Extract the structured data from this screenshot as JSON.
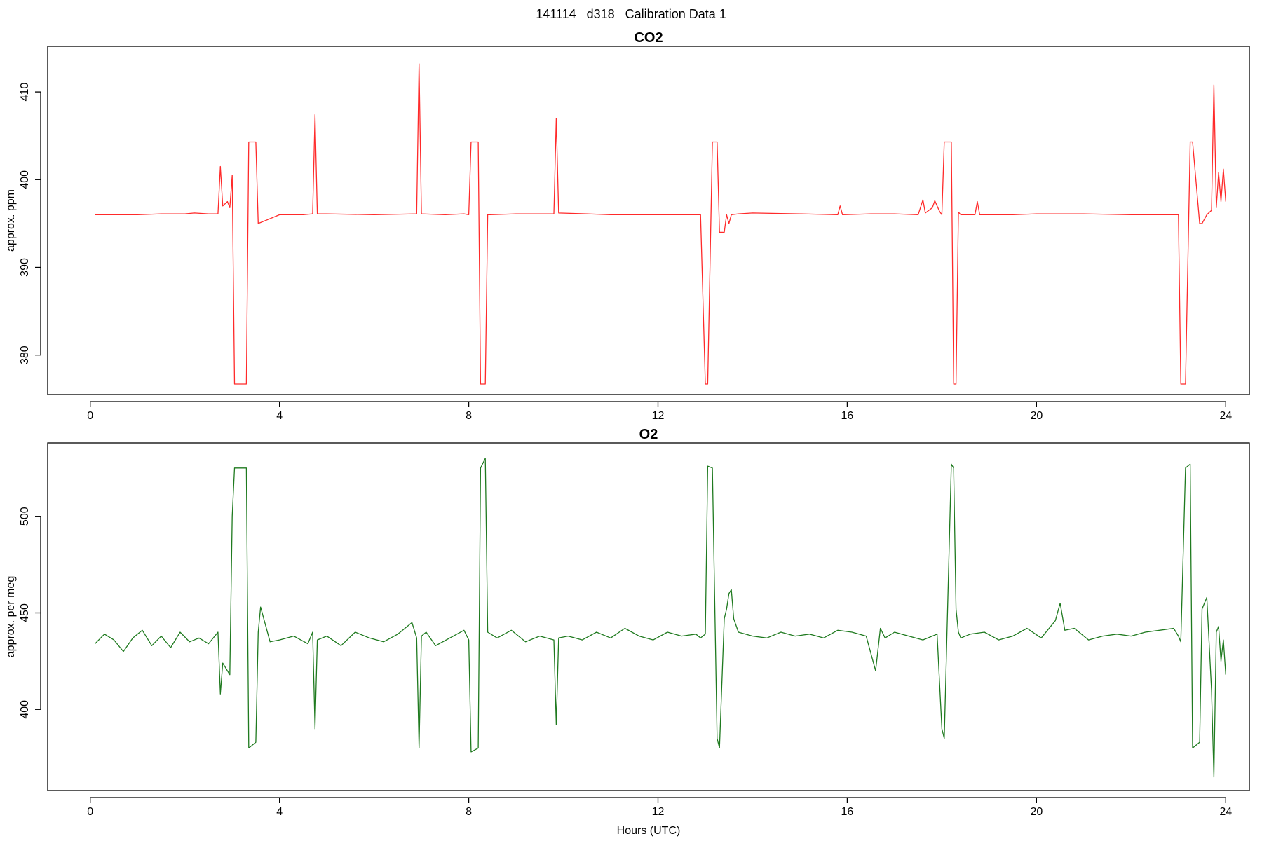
{
  "title": "141114   d318   Calibration Data 1",
  "chart_data": [
    {
      "type": "line",
      "title": "CO2",
      "xlabel": "",
      "ylabel": "approx. ppm",
      "xlim": [
        -0.9,
        24.5
      ],
      "ylim": [
        375.5,
        415.2
      ],
      "xticks": [
        0,
        4,
        8,
        12,
        16,
        20,
        24
      ],
      "yticks": [
        380,
        390,
        400,
        410
      ],
      "color": "#ff2a2a",
      "x": [
        0.1,
        0.5,
        1.0,
        1.5,
        2.0,
        2.2,
        2.5,
        2.7,
        2.75,
        2.8,
        2.9,
        2.95,
        3.0,
        3.05,
        3.3,
        3.35,
        3.5,
        3.55,
        4.0,
        4.5,
        4.7,
        4.75,
        4.8,
        5.0,
        6.0,
        6.9,
        6.95,
        7.0,
        7.5,
        7.9,
        8.0,
        8.05,
        8.2,
        8.25,
        8.35,
        8.4,
        8.45,
        9.0,
        9.8,
        9.85,
        9.9,
        10.5,
        11.0,
        12.0,
        12.9,
        13.0,
        13.05,
        13.15,
        13.25,
        13.3,
        13.4,
        13.45,
        13.5,
        13.55,
        13.7,
        14.0,
        15.0,
        15.8,
        15.85,
        15.9,
        16.5,
        17.0,
        17.5,
        17.6,
        17.65,
        17.8,
        17.85,
        17.95,
        18.0,
        18.05,
        18.2,
        18.25,
        18.3,
        18.35,
        18.4,
        18.7,
        18.75,
        18.8,
        19.5,
        20.0,
        21.0,
        22.0,
        23.0,
        23.05,
        23.15,
        23.25,
        23.3,
        23.45,
        23.5,
        23.6,
        23.7,
        23.75,
        23.8,
        23.85,
        23.9,
        23.95,
        24.0
      ],
      "y": [
        396.0,
        396.0,
        396.0,
        396.1,
        396.1,
        396.2,
        396.1,
        396.1,
        401.5,
        397.0,
        397.5,
        396.8,
        400.5,
        376.7,
        376.7,
        404.3,
        404.3,
        395.0,
        396.0,
        396.0,
        396.1,
        407.4,
        396.1,
        396.1,
        396.0,
        396.1,
        413.2,
        396.1,
        396.0,
        396.1,
        396.0,
        404.3,
        404.3,
        376.7,
        376.7,
        396.0,
        396.0,
        396.1,
        396.1,
        407.0,
        396.2,
        396.1,
        396.0,
        396.0,
        396.0,
        376.7,
        376.7,
        404.3,
        404.3,
        394.0,
        394.0,
        396.0,
        395.0,
        396.0,
        396.1,
        396.2,
        396.1,
        396.0,
        397.0,
        396.0,
        396.1,
        396.1,
        396.0,
        397.7,
        396.2,
        396.8,
        397.6,
        396.4,
        396.0,
        404.3,
        404.3,
        376.7,
        376.7,
        396.3,
        396.0,
        396.0,
        397.5,
        396.0,
        396.0,
        396.1,
        396.1,
        396.0,
        396.0,
        376.7,
        376.7,
        404.3,
        404.3,
        395.0,
        395.0,
        396.0,
        396.5,
        410.8,
        396.8,
        400.8,
        397.5,
        401.2,
        397.5
      ]
    },
    {
      "type": "line",
      "title": "O2",
      "xlabel": "Hours (UTC)",
      "ylabel": "approx. per meg",
      "xlim": [
        -0.9,
        24.5
      ],
      "ylim": [
        358.0,
        538.0
      ],
      "xticks": [
        0,
        4,
        8,
        12,
        16,
        20,
        24
      ],
      "yticks": [
        400,
        450,
        500
      ],
      "color": "#1f7a1f",
      "x": [
        0.1,
        0.3,
        0.5,
        0.7,
        0.9,
        1.1,
        1.3,
        1.5,
        1.7,
        1.9,
        2.1,
        2.3,
        2.5,
        2.7,
        2.75,
        2.8,
        2.9,
        2.95,
        3.0,
        3.05,
        3.3,
        3.35,
        3.5,
        3.55,
        3.6,
        3.8,
        4.0,
        4.3,
        4.6,
        4.7,
        4.75,
        4.8,
        5.0,
        5.3,
        5.6,
        5.9,
        6.2,
        6.5,
        6.8,
        6.9,
        6.95,
        7.0,
        7.1,
        7.3,
        7.6,
        7.9,
        8.0,
        8.05,
        8.2,
        8.25,
        8.35,
        8.4,
        8.6,
        8.9,
        9.2,
        9.5,
        9.8,
        9.85,
        9.9,
        10.1,
        10.4,
        10.7,
        11.0,
        11.3,
        11.6,
        11.9,
        12.2,
        12.5,
        12.8,
        12.9,
        13.0,
        13.05,
        13.15,
        13.25,
        13.3,
        13.4,
        13.45,
        13.5,
        13.55,
        13.6,
        13.7,
        14.0,
        14.3,
        14.6,
        14.9,
        15.2,
        15.5,
        15.8,
        16.1,
        16.4,
        16.6,
        16.7,
        16.8,
        17.0,
        17.3,
        17.6,
        17.9,
        18.0,
        18.05,
        18.2,
        18.25,
        18.3,
        18.35,
        18.4,
        18.6,
        18.9,
        19.2,
        19.5,
        19.8,
        20.1,
        20.4,
        20.5,
        20.6,
        20.8,
        21.1,
        21.4,
        21.7,
        22.0,
        22.3,
        22.6,
        22.9,
        23.0,
        23.05,
        23.15,
        23.25,
        23.3,
        23.45,
        23.5,
        23.6,
        23.7,
        23.75,
        23.8,
        23.85,
        23.9,
        23.95,
        24.0
      ],
      "y": [
        434,
        439,
        436,
        430,
        437,
        441,
        433,
        438,
        432,
        440,
        435,
        437,
        434,
        440,
        408,
        424,
        420,
        418,
        500,
        525,
        525,
        380,
        383,
        440,
        453,
        435,
        436,
        438,
        434,
        440,
        390,
        436,
        438,
        433,
        440,
        437,
        435,
        439,
        445,
        437,
        380,
        438,
        440,
        433,
        437,
        441,
        436,
        378,
        380,
        525,
        530,
        440,
        437,
        441,
        435,
        438,
        436,
        392,
        437,
        438,
        436,
        440,
        437,
        442,
        438,
        436,
        440,
        438,
        439,
        437,
        439,
        526,
        525,
        385,
        380,
        447,
        452,
        460,
        462,
        447,
        440,
        438,
        437,
        440,
        438,
        439,
        437,
        441,
        440,
        438,
        420,
        442,
        437,
        440,
        438,
        436,
        439,
        390,
        385,
        527,
        525,
        452,
        440,
        437,
        439,
        440,
        436,
        438,
        442,
        437,
        446,
        455,
        441,
        442,
        436,
        438,
        439,
        438,
        440,
        441,
        442,
        438,
        435,
        525,
        527,
        380,
        383,
        452,
        458,
        410,
        365,
        440,
        443,
        425,
        436,
        418
      ]
    }
  ]
}
